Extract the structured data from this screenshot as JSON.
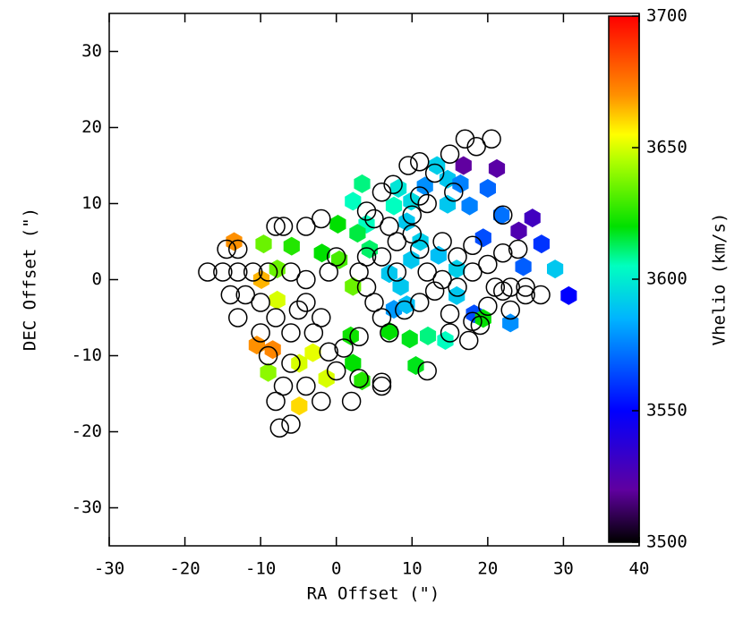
{
  "chart_data": {
    "type": "scatter",
    "xlabel": "RA Offset (\")",
    "ylabel": "DEC Offset (\")",
    "xlim": [
      -30,
      40
    ],
    "ylim": [
      -35,
      35
    ],
    "xticks": [
      -30,
      -20,
      -10,
      0,
      10,
      20,
      30,
      40
    ],
    "yticks": [
      -30,
      -20,
      -10,
      0,
      10,
      20,
      30
    ],
    "points": {
      "x": [
        -13.5,
        -9.6,
        -5.9,
        -1.9,
        0.2,
        0.4,
        -7.8,
        -9.9,
        -7.8,
        -10.5,
        -8.4,
        -3.1,
        -4.9,
        -9,
        -1.3,
        -4.9,
        2.2,
        3.4,
        1.9,
        2.2,
        3.4,
        2.2,
        4,
        2.8,
        4.4,
        7,
        7.6,
        9.3,
        8.5,
        9.9,
        11.1,
        9.9,
        7.6,
        8.2,
        11.7,
        13.3,
        14.7,
        16.8,
        21.2,
        20,
        16.4,
        14.7,
        17.6,
        21.8,
        25.9,
        24.1,
        27.1,
        19.4,
        24.7,
        28.9,
        30.7,
        18.2,
        19.4,
        23,
        15.9,
        15.9,
        13.5,
        7,
        9.7,
        12.1,
        14.4,
        10.5,
        9.3
      ],
      "y": [
        5,
        4.7,
        4.4,
        3.5,
        7.3,
        2.6,
        1.4,
        0,
        -2.7,
        -8.6,
        -9.2,
        -9.6,
        -11,
        -12.2,
        -13,
        -16.6,
        -11,
        -13.3,
        -7.4,
        -0.9,
        12.6,
        10.3,
        7.3,
        6.1,
        4,
        0.8,
        -3.9,
        -3.3,
        -0.9,
        2.6,
        5,
        10.3,
        9.7,
        12,
        12.3,
        15,
        13.2,
        15,
        14.6,
        12,
        12.6,
        9.9,
        9.7,
        8.5,
        8.1,
        6.4,
        4.7,
        5.5,
        1.7,
        1.4,
        -2.1,
        -4.5,
        -5.1,
        -5.7,
        -2.1,
        1.4,
        3.2,
        -6.8,
        -7.8,
        -7.4,
        -8,
        -11.3,
        7.6
      ],
      "vhelio": [
        3670,
        3635,
        3625,
        3620,
        3620,
        3630,
        3635,
        3665,
        3650,
        3670,
        3672,
        3652,
        3650,
        3640,
        3650,
        3660,
        3620,
        3625,
        3622,
        3635,
        3610,
        3605,
        3605,
        3615,
        3612,
        3590,
        3580,
        3588,
        3590,
        3590,
        3592,
        3595,
        3605,
        3598,
        3578,
        3592,
        3590,
        3520,
        3522,
        3570,
        3575,
        3590,
        3575,
        3572,
        3530,
        3525,
        3560,
        3565,
        3568,
        3590,
        3550,
        3565,
        3620,
        3578,
        3590,
        3592,
        3588,
        3620,
        3618,
        3610,
        3605,
        3618,
        3590
      ]
    },
    "circles": {
      "x": [
        17,
        20.5,
        18.5,
        15,
        11,
        9.5,
        13,
        15.5,
        7.5,
        11,
        6,
        12,
        10,
        4,
        7,
        5,
        10,
        8,
        11,
        14,
        6,
        4,
        3,
        4,
        8,
        12,
        14,
        16,
        18,
        20,
        22,
        18,
        16,
        22,
        24,
        21,
        23,
        25,
        27,
        23,
        20,
        18,
        15,
        17.5,
        19,
        13,
        11,
        9,
        6,
        5,
        7,
        3,
        1,
        -1,
        0,
        3,
        6,
        2,
        -2,
        -4,
        -7,
        -8,
        -6,
        -7.5,
        -9,
        -6,
        -10,
        -8,
        -6,
        -3,
        -2,
        -4,
        -5,
        -13,
        -10,
        -12,
        -14,
        -15,
        -17,
        -13,
        -11,
        -9,
        -6,
        -4,
        -1,
        -13,
        -7,
        -4,
        -8,
        -2,
        12,
        15,
        6,
        -14.5,
        0,
        25,
        22
      ],
      "y": [
        18.5,
        18.5,
        17.5,
        16.5,
        15.5,
        15,
        14,
        11.5,
        12.5,
        11,
        11.5,
        10,
        8.5,
        9,
        7,
        8,
        6,
        5,
        4,
        5,
        3,
        3,
        1,
        -1,
        1,
        1,
        0,
        -1,
        1,
        2,
        3.5,
        4.5,
        3,
        8.5,
        4,
        -1,
        -1,
        -2,
        -2,
        -4,
        -3.5,
        -5.5,
        -4.5,
        -8,
        -6,
        -1.5,
        -3,
        -4,
        -5,
        -3,
        -7,
        -7.5,
        -9,
        -9.5,
        -12,
        -13,
        -13.5,
        -16,
        -16,
        -14,
        -14,
        -16,
        -19,
        -19.5,
        -10,
        -11,
        -7,
        -5,
        -7,
        -7,
        -5,
        -3,
        -4,
        -5,
        -3,
        -2,
        -2,
        1,
        1,
        1,
        1,
        1,
        1,
        0,
        1,
        4,
        7,
        7,
        7,
        8,
        -12,
        -7,
        -14,
        4,
        3,
        -1,
        -1.5
      ]
    },
    "colorbar": {
      "label": "Vhelio (km/s)",
      "lim": [
        3500,
        3700
      ],
      "ticks": [
        3500,
        3550,
        3600,
        3650,
        3700
      ],
      "stops": [
        3500,
        3520,
        3550,
        3585,
        3605,
        3620,
        3645,
        3655,
        3670,
        3700
      ],
      "colors": [
        "#000000",
        "#6000a0",
        "#0000ff",
        "#00b4ff",
        "#00ffc0",
        "#00e000",
        "#b0ff00",
        "#ffff00",
        "#ff9000",
        "#ff0000"
      ]
    }
  }
}
